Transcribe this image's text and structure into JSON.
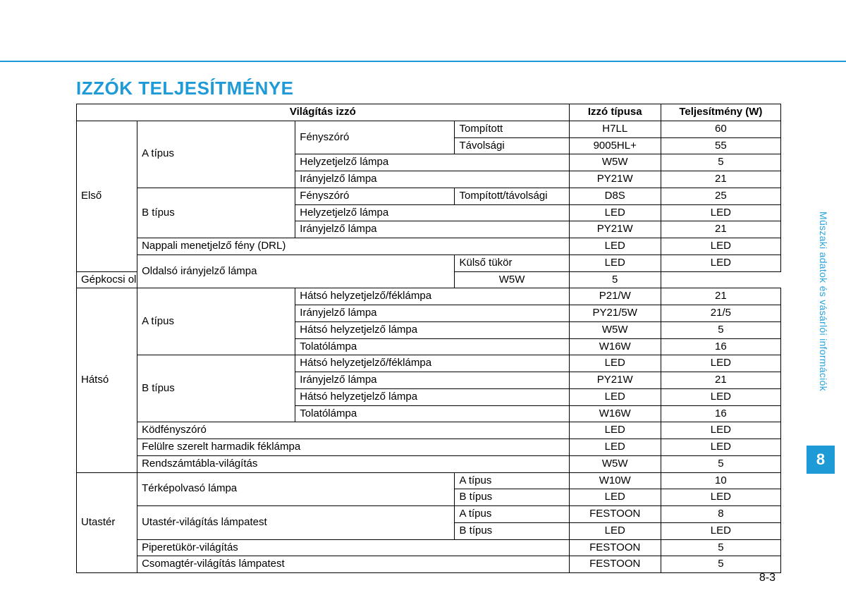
{
  "title": "IZZÓK TELJESÍTMÉNYE",
  "side_label": "Műszaki adatok és vásárlói információk",
  "side_tab": "8",
  "page_number": "8-3",
  "accent_color": "#1e9bd7",
  "header": {
    "c1to4": "Világítás izzó",
    "c5": "Izzó típusa",
    "c6": "Teljesítmény (W)"
  },
  "rows": [
    {
      "c1": "Első",
      "c1_rs": 9,
      "c2": "A típus",
      "c2_rs": 4,
      "c3": "Fényszóró",
      "c3_rs": 2,
      "c4": "Tompított",
      "type": "H7LL",
      "watt": "60"
    },
    {
      "c4": "Távolsági",
      "type": "9005HL+",
      "watt": "55"
    },
    {
      "c3": "Helyzetjelző lámpa",
      "c3_cs": 2,
      "type": "W5W",
      "watt": "5"
    },
    {
      "c3": "Irányjelző lámpa",
      "c3_cs": 2,
      "type": "PY21W",
      "watt": "21"
    },
    {
      "c2": "B típus",
      "c2_rs": 3,
      "c3": "Fényszóró",
      "c4": "Tompított/távolsági",
      "type": "D8S",
      "watt": "25"
    },
    {
      "c3": "Helyzetjelző lámpa",
      "c3_cs": 2,
      "type": "LED",
      "watt": "LED"
    },
    {
      "c3": "Irányjelző lámpa",
      "c3_cs": 2,
      "type": "PY21W",
      "watt": "21"
    },
    {
      "c2": "Nappali menetjelző fény (DRL)",
      "c2_cs": 3,
      "type": "LED",
      "watt": "LED"
    },
    {
      "c2": "Oldalsó irányjelző lámpa",
      "c2_cs": 2,
      "c2_rs": 2,
      "c4": "Külső tükör",
      "type": "LED",
      "watt": "LED"
    },
    {
      "c4": "Gépkocsi oldala",
      "type": "W5W",
      "watt": "5"
    },
    {
      "c1": "Hátsó",
      "c1_rs": 11,
      "c2": "A típus",
      "c2_rs": 4,
      "c3": "Hátsó helyzetjelző/féklámpa",
      "c3_cs": 2,
      "type": "P21/W",
      "watt": "21"
    },
    {
      "c3": "Irányjelző lámpa",
      "c3_cs": 2,
      "type": "PY21/5W",
      "watt": "21/5"
    },
    {
      "c3": "Hátsó helyzetjelző lámpa",
      "c3_cs": 2,
      "type": "W5W",
      "watt": "5"
    },
    {
      "c3": "Tolatólámpa",
      "c3_cs": 2,
      "type": "W16W",
      "watt": "16"
    },
    {
      "c2": "B típus",
      "c2_rs": 4,
      "c3": "Hátsó helyzetjelző/féklámpa",
      "c3_cs": 2,
      "type": "LED",
      "watt": "LED"
    },
    {
      "c3": "Irányjelző lámpa",
      "c3_cs": 2,
      "type": "PY21W",
      "watt": "21"
    },
    {
      "c3": "Hátsó helyzetjelző lámpa",
      "c3_cs": 2,
      "type": "LED",
      "watt": "LED"
    },
    {
      "c3": "Tolatólámpa",
      "c3_cs": 2,
      "type": "W16W",
      "watt": "16"
    },
    {
      "c2": "Ködfényszóró",
      "c2_cs": 3,
      "type": "LED",
      "watt": "LED"
    },
    {
      "c2": "Felülre szerelt harmadik féklámpa",
      "c2_cs": 3,
      "type": "LED",
      "watt": "LED"
    },
    {
      "c2": "Rendszámtábla-világítás",
      "c2_cs": 3,
      "type": "W5W",
      "watt": "5"
    },
    {
      "c1": "Utastér",
      "c1_rs": 6,
      "c2": "Térképolvasó lámpa",
      "c2_cs": 2,
      "c2_rs": 2,
      "c4": "A típus",
      "type": "W10W",
      "watt": "10"
    },
    {
      "c4": "B típus",
      "type": "LED",
      "watt": "LED"
    },
    {
      "c2": "Utastér-világítás lámpatest",
      "c2_cs": 2,
      "c2_rs": 2,
      "c4": "A típus",
      "type": "FESTOON",
      "watt": "8"
    },
    {
      "c4": "B típus",
      "type": "LED",
      "watt": "LED"
    },
    {
      "c2": "Piperetükör-világítás",
      "c2_cs": 3,
      "type": "FESTOON",
      "watt": "5"
    },
    {
      "c2": "Csomagtér-világítás lámpatest",
      "c2_cs": 3,
      "type": "FESTOON",
      "watt": "5"
    }
  ]
}
